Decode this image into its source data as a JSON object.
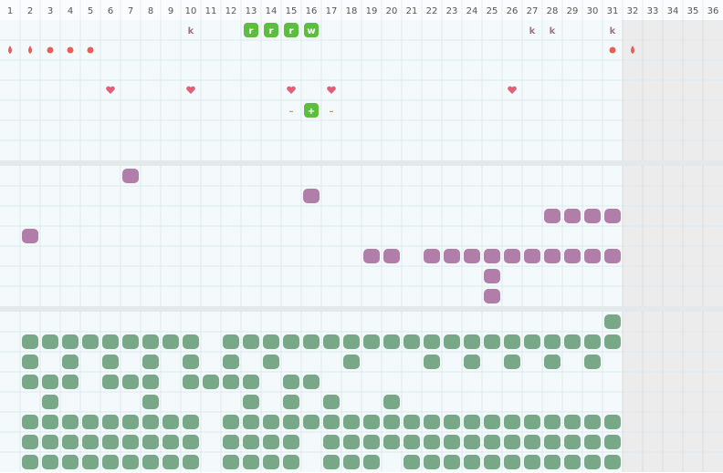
{
  "columns": [
    1,
    2,
    3,
    4,
    5,
    6,
    7,
    8,
    9,
    10,
    11,
    12,
    13,
    14,
    15,
    16,
    17,
    18,
    19,
    20,
    21,
    22,
    23,
    24,
    25,
    26,
    27,
    28,
    29,
    30,
    31,
    32,
    33,
    34,
    35,
    36
  ],
  "markers": [
    "k",
    "r",
    "r",
    "r",
    "w",
    "k",
    "k",
    "k",
    "–",
    "+",
    "–"
  ]
}
